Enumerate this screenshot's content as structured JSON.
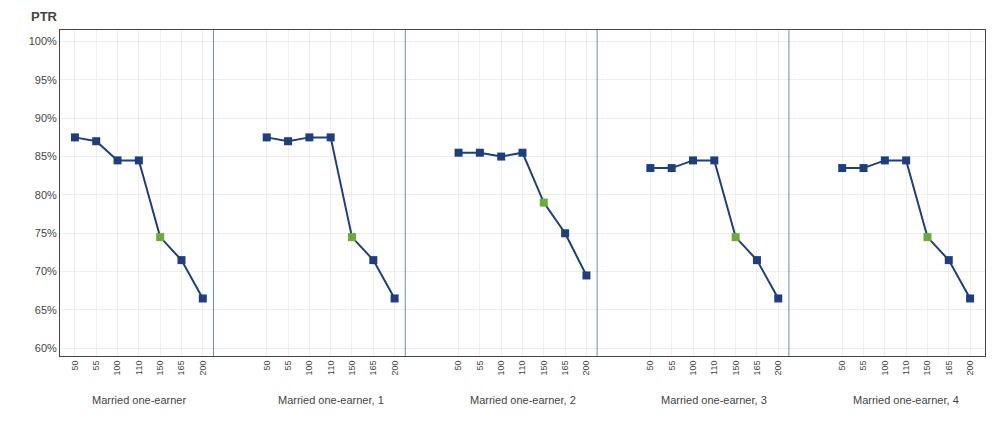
{
  "chart_data": {
    "type": "line",
    "ylabel": "PTR",
    "categories": [
      "50",
      "55",
      "100",
      "110",
      "150",
      "165",
      "200",
      null,
      null,
      "50",
      "55",
      "100",
      "110",
      "150",
      "165",
      "200",
      null,
      null,
      "50",
      "55",
      "100",
      "110",
      "150",
      "165",
      "200",
      null,
      null,
      "50",
      "55",
      "100",
      "110",
      "150",
      "165",
      "200",
      null,
      null,
      "50",
      "55",
      "100",
      "110",
      "150",
      "165",
      "200"
    ],
    "series": [
      {
        "color": "#1F3F7A",
        "values": [
          87.5,
          87.0,
          84.5,
          84.5,
          74.5,
          71.5,
          66.5,
          null,
          null,
          null,
          null,
          null,
          null,
          null,
          null,
          null,
          null,
          null,
          null,
          null,
          null,
          null,
          null,
          null,
          null,
          null,
          null,
          null,
          null,
          null,
          null,
          null,
          null,
          null,
          null,
          null,
          null,
          null,
          null,
          null,
          null,
          null,
          null
        ],
        "colors": [
          "#1F3F7A",
          "#1F3F7A",
          "#1F3F7A",
          "#1F3F7A",
          "#6AAB3C",
          "#1F3F7A",
          "#1F3F7A",
          null,
          null,
          null,
          null,
          null,
          null,
          null,
          null,
          null,
          null,
          null,
          null,
          null,
          null,
          null,
          null,
          null,
          null,
          null,
          null,
          null,
          null,
          null,
          null,
          null,
          null,
          null,
          null,
          null,
          null,
          null,
          null,
          null,
          null,
          null,
          null
        ]
      },
      {
        "color": "#1F3F7A",
        "values": [
          null,
          null,
          null,
          null,
          null,
          null,
          null,
          null,
          null,
          87.5,
          87.0,
          87.5,
          87.5,
          74.5,
          71.5,
          66.5,
          null,
          null,
          null,
          null,
          null,
          null,
          null,
          null,
          null,
          null,
          null,
          null,
          null,
          null,
          null,
          null,
          null,
          null,
          null,
          null,
          null,
          null,
          null,
          null,
          null,
          null,
          null
        ],
        "colors": [
          null,
          null,
          null,
          null,
          null,
          null,
          null,
          null,
          null,
          "#1F3F7A",
          "#1F3F7A",
          "#1F3F7A",
          "#1F3F7A",
          "#6AAB3C",
          "#1F3F7A",
          "#1F3F7A",
          null,
          null,
          null,
          null,
          null,
          null,
          null,
          null,
          null,
          null,
          null,
          null,
          null,
          null,
          null,
          null,
          null,
          null,
          null,
          null,
          null,
          null,
          null,
          null,
          null,
          null,
          null
        ]
      },
      {
        "color": "#1F3F7A",
        "values": [
          null,
          null,
          null,
          null,
          null,
          null,
          null,
          null,
          null,
          null,
          null,
          null,
          null,
          null,
          null,
          null,
          null,
          null,
          85.5,
          85.5,
          85.0,
          85.5,
          79.0,
          75.0,
          69.5,
          null,
          null,
          null,
          null,
          null,
          null,
          null,
          null,
          null,
          null,
          null,
          null,
          null,
          null,
          null,
          null,
          null,
          null
        ],
        "colors": [
          null,
          null,
          null,
          null,
          null,
          null,
          null,
          null,
          null,
          null,
          null,
          null,
          null,
          null,
          null,
          null,
          null,
          null,
          "#1F3F7A",
          "#1F3F7A",
          "#1F3F7A",
          "#1F3F7A",
          "#6AAB3C",
          "#1F3F7A",
          "#1F3F7A",
          null,
          null,
          null,
          null,
          null,
          null,
          null,
          null,
          null,
          null,
          null,
          null,
          null,
          null,
          null,
          null,
          null,
          null
        ]
      },
      {
        "color": "#1F3F7A",
        "values": [
          null,
          null,
          null,
          null,
          null,
          null,
          null,
          null,
          null,
          null,
          null,
          null,
          null,
          null,
          null,
          null,
          null,
          null,
          null,
          null,
          null,
          null,
          null,
          null,
          null,
          null,
          null,
          83.5,
          83.5,
          84.5,
          84.5,
          74.5,
          71.5,
          66.5,
          null,
          null,
          null,
          null,
          null,
          null,
          null,
          null,
          null
        ],
        "colors": [
          null,
          null,
          null,
          null,
          null,
          null,
          null,
          null,
          null,
          null,
          null,
          null,
          null,
          null,
          null,
          null,
          null,
          null,
          null,
          null,
          null,
          null,
          null,
          null,
          null,
          null,
          null,
          "#1F3F7A",
          "#1F3F7A",
          "#1F3F7A",
          "#1F3F7A",
          "#6AAB3C",
          "#1F3F7A",
          "#1F3F7A",
          null,
          null,
          null,
          null,
          null,
          null,
          null,
          null,
          null
        ]
      },
      {
        "color": "#1F3F7A",
        "values": [
          null,
          null,
          null,
          null,
          null,
          null,
          null,
          null,
          null,
          null,
          null,
          null,
          null,
          null,
          null,
          null,
          null,
          null,
          null,
          null,
          null,
          null,
          null,
          null,
          null,
          null,
          null,
          null,
          null,
          null,
          null,
          null,
          null,
          null,
          null,
          null,
          83.5,
          83.5,
          84.5,
          84.5,
          74.5,
          71.5,
          66.5
        ],
        "colors": [
          null,
          null,
          null,
          null,
          null,
          null,
          null,
          null,
          null,
          null,
          null,
          null,
          null,
          null,
          null,
          null,
          null,
          null,
          null,
          null,
          null,
          null,
          null,
          null,
          null,
          null,
          null,
          null,
          null,
          null,
          null,
          null,
          null,
          null,
          null,
          null,
          "#1F3F7A",
          "#1F3F7A",
          "#1F3F7A",
          "#1F3F7A",
          "#6AAB3C",
          "#1F3F7A",
          "#1F3F7A"
        ]
      }
    ],
    "annotations": [
      "Married one-earner",
      "Married one-earner, 1",
      "Married one-earner, 2",
      "Married one-earner, 3",
      "Married one-earner, 4"
    ],
    "marker": "square",
    "ylim": [
      59.0,
      101.5
    ],
    "yticks": [
      {
        "value": 60,
        "label": "60%"
      },
      {
        "value": 65,
        "label": "65%"
      },
      {
        "value": 70,
        "label": "70%"
      },
      {
        "value": 75,
        "label": "75%"
      },
      {
        "value": 80,
        "label": "80%"
      },
      {
        "value": 85,
        "label": "85%"
      },
      {
        "value": 90,
        "label": "90%"
      },
      {
        "value": 95,
        "label": "95%"
      },
      {
        "value": 100,
        "label": "100%"
      }
    ],
    "grid": true
  }
}
